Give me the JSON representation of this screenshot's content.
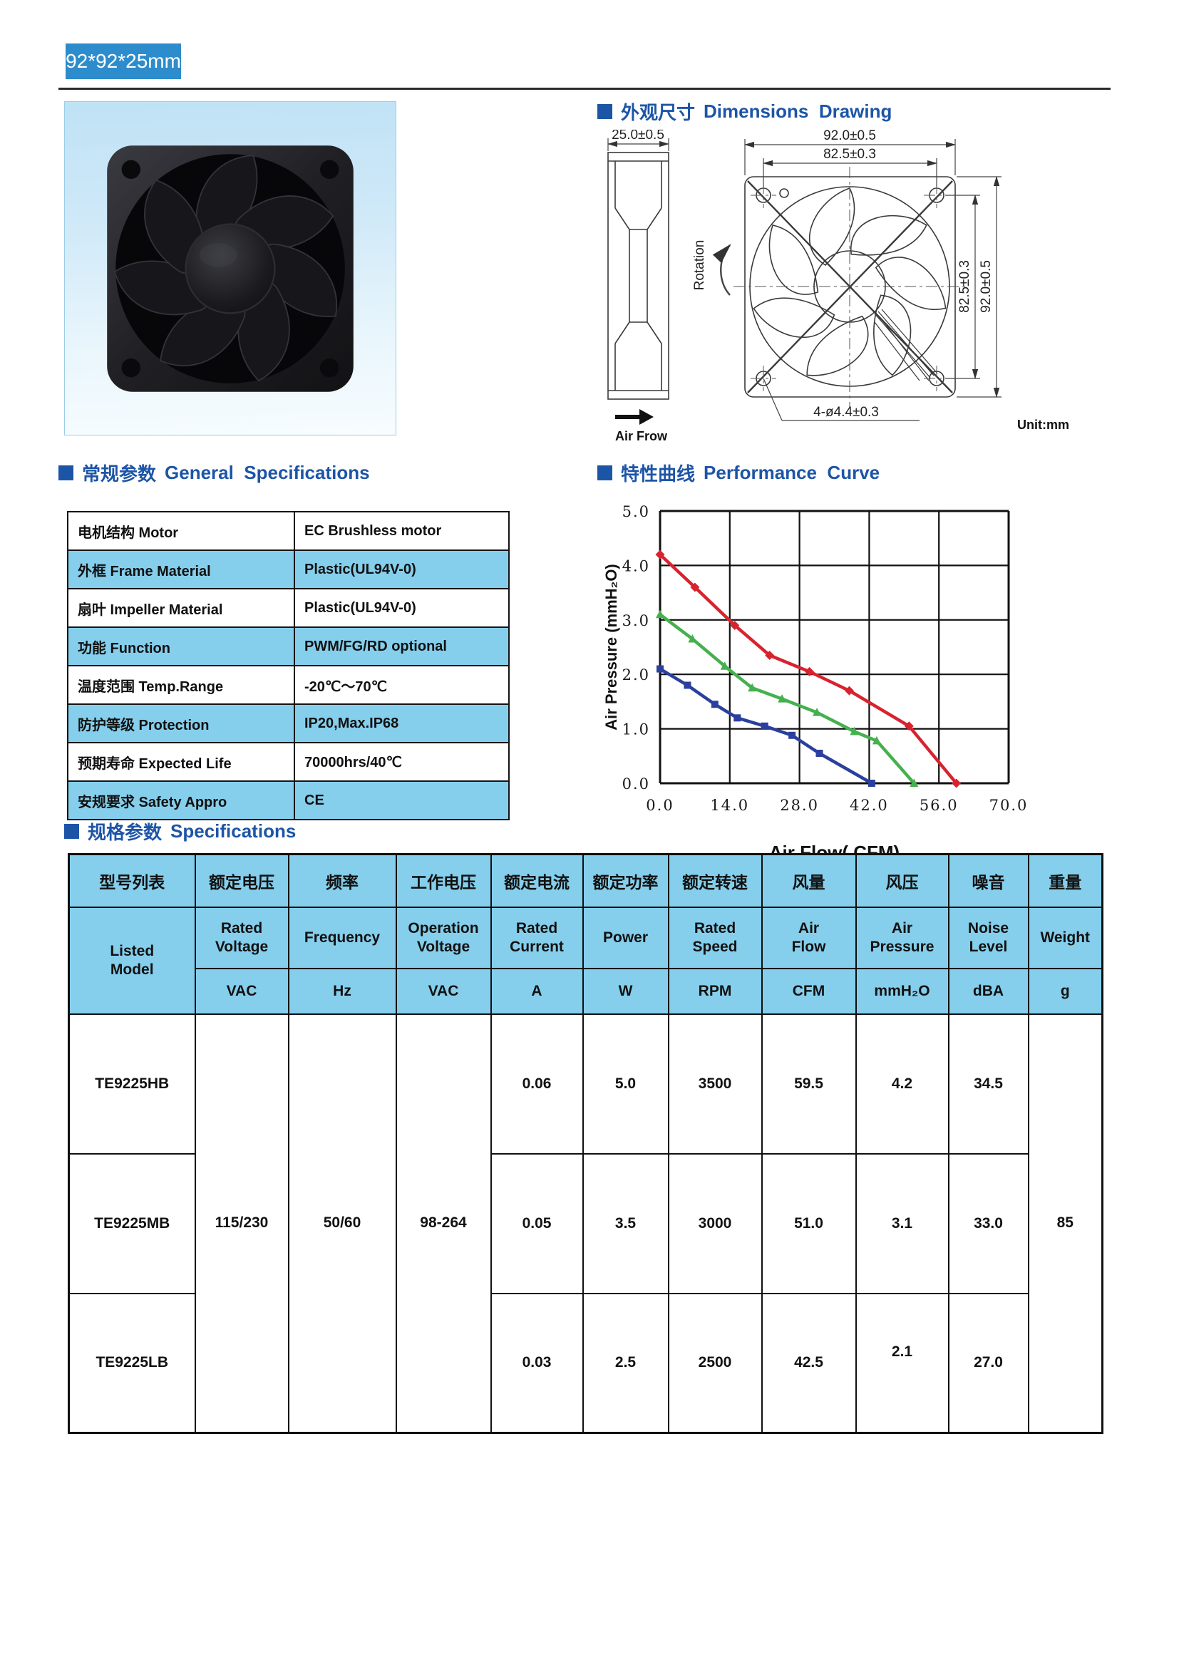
{
  "page": {
    "badge": "92*92*25mm"
  },
  "sections": {
    "dimensions": {
      "zh": "外观尺寸",
      "en": "Dimensions  Drawing"
    },
    "general": {
      "zh": "常规参数",
      "en": "General  Specifications"
    },
    "curve": {
      "zh": "特性曲线",
      "en": "Performance  Curve"
    },
    "specs": {
      "zh": "规格参数",
      "en": "Specifications"
    }
  },
  "drawing": {
    "depth": "25.0±0.5",
    "width": "92.0±0.5",
    "hole_pitch": "82.5±0.3",
    "side_hole_pitch": "82.5±0.3",
    "side_width": "92.0±0.5",
    "holes": "4-ø4.4±0.3",
    "unit": "Unit:mm",
    "airflow": "Air Frow",
    "rotation": "Rotation"
  },
  "general_table": {
    "rows": [
      {
        "label": "电机结构 Motor",
        "value": "EC  Brushless motor"
      },
      {
        "label": "外框 Frame Material",
        "value": "Plastic(UL94V-0)"
      },
      {
        "label": "扇叶 Impeller Material",
        "value": "Plastic(UL94V-0)"
      },
      {
        "label": "功能 Function",
        "value": "PWM/FG/RD optional"
      },
      {
        "label": "温度范围 Temp.Range",
        "value": "-20℃～70℃"
      },
      {
        "label": "防护等级 Protection",
        "value": "IP20,Max.IP68"
      },
      {
        "label": "预期寿命 Expected Life",
        "value": "70000hrs/40℃"
      },
      {
        "label": "安规要求 Safety Appro",
        "value": "CE"
      }
    ]
  },
  "chart_data": {
    "type": "line",
    "title": "",
    "xlabel": "Air Flow( CFM)",
    "ylabel": "Air Pressure (mmH₂O)",
    "xlim": [
      0,
      70
    ],
    "ylim": [
      0,
      5
    ],
    "xticks": [
      "0.0",
      "14.0",
      "28.0",
      "42.0",
      "56.0",
      "70.0"
    ],
    "yticks": [
      "0.0",
      "1.0",
      "2.0",
      "3.0",
      "4.0",
      "5.0"
    ],
    "grid": true,
    "legend": "none",
    "series": [
      {
        "name": "TE9225HB",
        "color": "#d8232f",
        "marker": "diamond",
        "points": [
          [
            0,
            4.2
          ],
          [
            7,
            3.6
          ],
          [
            15,
            2.9
          ],
          [
            22,
            2.35
          ],
          [
            30,
            2.05
          ],
          [
            38,
            1.7
          ],
          [
            50,
            1.05
          ],
          [
            59.5,
            0
          ]
        ]
      },
      {
        "name": "TE9225MB",
        "color": "#45b14e",
        "marker": "triangle",
        "points": [
          [
            0,
            3.1
          ],
          [
            6.5,
            2.65
          ],
          [
            13,
            2.15
          ],
          [
            18.5,
            1.75
          ],
          [
            24.5,
            1.55
          ],
          [
            31.5,
            1.3
          ],
          [
            39,
            0.95
          ],
          [
            43.5,
            0.78
          ],
          [
            51,
            0
          ]
        ]
      },
      {
        "name": "TE9225LB",
        "color": "#2b3f9e",
        "marker": "square",
        "points": [
          [
            0,
            2.1
          ],
          [
            5.5,
            1.8
          ],
          [
            11,
            1.45
          ],
          [
            15.5,
            1.2
          ],
          [
            21,
            1.05
          ],
          [
            26.5,
            0.88
          ],
          [
            32,
            0.55
          ],
          [
            42.5,
            0
          ]
        ]
      }
    ]
  },
  "spec_table": {
    "headers_zh": [
      "型号列表",
      "额定电压",
      "频率",
      "工作电压",
      "额定电流",
      "额定功率",
      "额定转速",
      "风量",
      "风压",
      "噪音",
      "重量"
    ],
    "headers_en": [
      "Listed\nModel",
      "Rated\nVoltage",
      "Frequency",
      "Operation\nVoltage",
      "Rated\nCurrent",
      "Power",
      "Rated\nSpeed",
      "Air\nFlow",
      "Air\nPressure",
      "Noise\nLevel",
      "Weight"
    ],
    "units": [
      "VAC",
      "Hz",
      "VAC",
      "A",
      "W",
      "RPM",
      "CFM",
      "mmH₂O",
      "dBA",
      "g"
    ],
    "shared": {
      "voltage": "115/230",
      "frequency": "50/60",
      "operation_voltage": "98-264",
      "weight": "85"
    },
    "rows": [
      {
        "model": "TE9225HB",
        "current": "0.06",
        "power": "5.0",
        "speed": "3500",
        "airflow": "59.5",
        "pressure": "4.2",
        "noise": "34.5"
      },
      {
        "model": "TE9225MB",
        "current": "0.05",
        "power": "3.5",
        "speed": "3000",
        "airflow": "51.0",
        "pressure": "3.1",
        "noise": "33.0"
      },
      {
        "model": "TE9225LB",
        "current": "0.03",
        "power": "2.5",
        "speed": "2500",
        "airflow": "42.5",
        "pressure": "2.1",
        "noise": "27.0"
      }
    ]
  }
}
